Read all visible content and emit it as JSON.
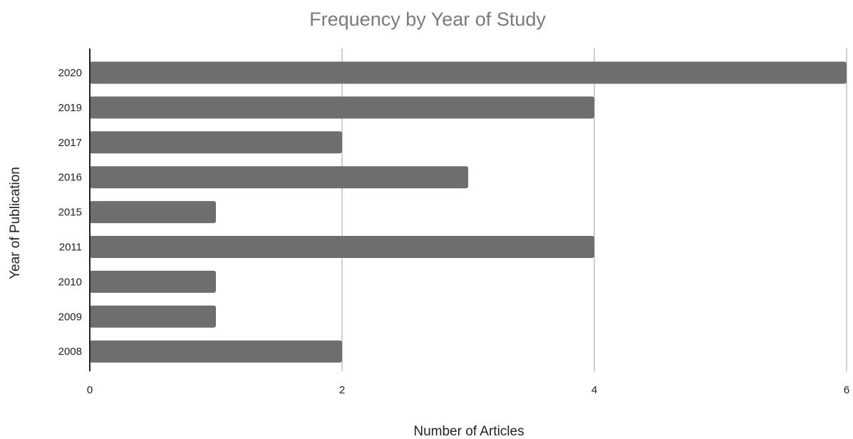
{
  "chart_data": {
    "type": "bar",
    "orientation": "horizontal",
    "title": "Frequency by Year of Study",
    "xlabel": "Number of Articles",
    "ylabel": "Year of Publication",
    "categories": [
      "2020",
      "2019",
      "2017",
      "2016",
      "2015",
      "2011",
      "2010",
      "2009",
      "2008"
    ],
    "values": [
      6,
      4,
      2,
      3,
      1,
      4,
      1,
      1,
      2
    ],
    "xlim": [
      0,
      6
    ],
    "xticks": [
      "0",
      "2",
      "4",
      "6"
    ],
    "grid": true,
    "legend": "none",
    "colors": {
      "bar": "#6e6e6e",
      "grid": "#cfcfcf",
      "axis": "#222222",
      "title": "#7a7a7a"
    }
  }
}
